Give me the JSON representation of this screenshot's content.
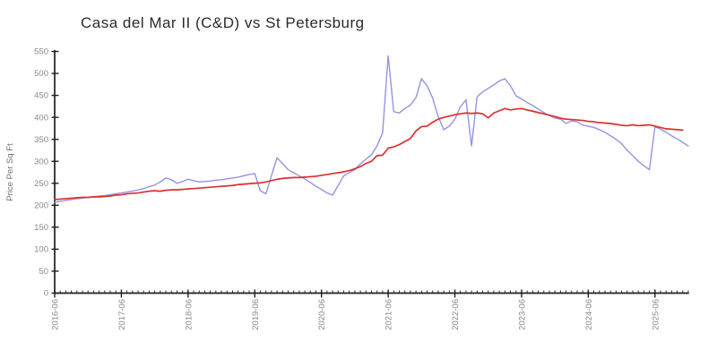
{
  "title": "Casa del Mar II (C&D) vs St Petersburg",
  "colors": {
    "casa_line": "#9494e0",
    "st_pete_line": "#dd2f2f",
    "axis": "#1f1f1f",
    "tick_label": "#8a8a8a",
    "axis_title": "#6e6e6e",
    "title_text": "#2b2b2b",
    "background": "#ffffff"
  },
  "chart_data": {
    "type": "line",
    "title": "Casa del Mar II (C&D) vs St Petersburg",
    "xlabel": "",
    "ylabel": "Price Per Sq Ft",
    "ylim": [
      0,
      550
    ],
    "y_ticks": [
      0,
      50,
      100,
      150,
      200,
      250,
      300,
      350,
      400,
      450,
      500,
      550
    ],
    "x_start": "2016-06",
    "x_interval": "monthly",
    "x_tick_labels": [
      "2016-06",
      "2017-06",
      "2018-06",
      "2019-06",
      "2020-06",
      "2021-06",
      "2022-06",
      "2023-06",
      "2024-06",
      "2025-06"
    ],
    "x_major_every_months": 12,
    "grid": false,
    "legend": "none",
    "series": [
      {
        "name": "Casa del Mar II (C&D)",
        "color": "#9494e0",
        "values": [
          207,
          209,
          211,
          213,
          215,
          216,
          218,
          219,
          221,
          222,
          224,
          226,
          228,
          230,
          232,
          235,
          238,
          242,
          246,
          253,
          262,
          258,
          250,
          254,
          259,
          256,
          253,
          254,
          255,
          257,
          258,
          260,
          262,
          264,
          267,
          270,
          272,
          233,
          226,
          267,
          308,
          295,
          281,
          274,
          267,
          260,
          252,
          243,
          236,
          228,
          223,
          245,
          267,
          274,
          281,
          294,
          305,
          315,
          335,
          365,
          540,
          413,
          410,
          420,
          428,
          445,
          488,
          472,
          444,
          402,
          372,
          380,
          396,
          424,
          440,
          335,
          447,
          458,
          466,
          474,
          483,
          488,
          472,
          449,
          442,
          434,
          427,
          419,
          411,
          404,
          398,
          396,
          386,
          392,
          390,
          382,
          380,
          377,
          372,
          366,
          358,
          350,
          340,
          325,
          313,
          300,
          290,
          281,
          379,
          373,
          366,
          358,
          351,
          343,
          335
        ]
      },
      {
        "name": "St Petersburg",
        "color": "#dd2f2f",
        "values": [
          213,
          214,
          215,
          216,
          217,
          218,
          218,
          219,
          219,
          220,
          221,
          223,
          224,
          226,
          227,
          228,
          230,
          232,
          233,
          232,
          234,
          235,
          235,
          236,
          237,
          238,
          239,
          240,
          241,
          242,
          243,
          244,
          245,
          247,
          248,
          249,
          250,
          251,
          253,
          256,
          259,
          261,
          262,
          263,
          263,
          264,
          265,
          266,
          268,
          270,
          272,
          274,
          276,
          279,
          283,
          288,
          295,
          300,
          313,
          314,
          330,
          333,
          338,
          345,
          352,
          369,
          379,
          380,
          389,
          396,
          400,
          403,
          406,
          408,
          410,
          409,
          410,
          408,
          399,
          410,
          415,
          420,
          417,
          419,
          420,
          417,
          414,
          411,
          408,
          405,
          402,
          398,
          396,
          395,
          394,
          393,
          391,
          390,
          388,
          387,
          386,
          384,
          382,
          381,
          383,
          381,
          382,
          383,
          380,
          377,
          374,
          373,
          372,
          371
        ]
      }
    ]
  }
}
